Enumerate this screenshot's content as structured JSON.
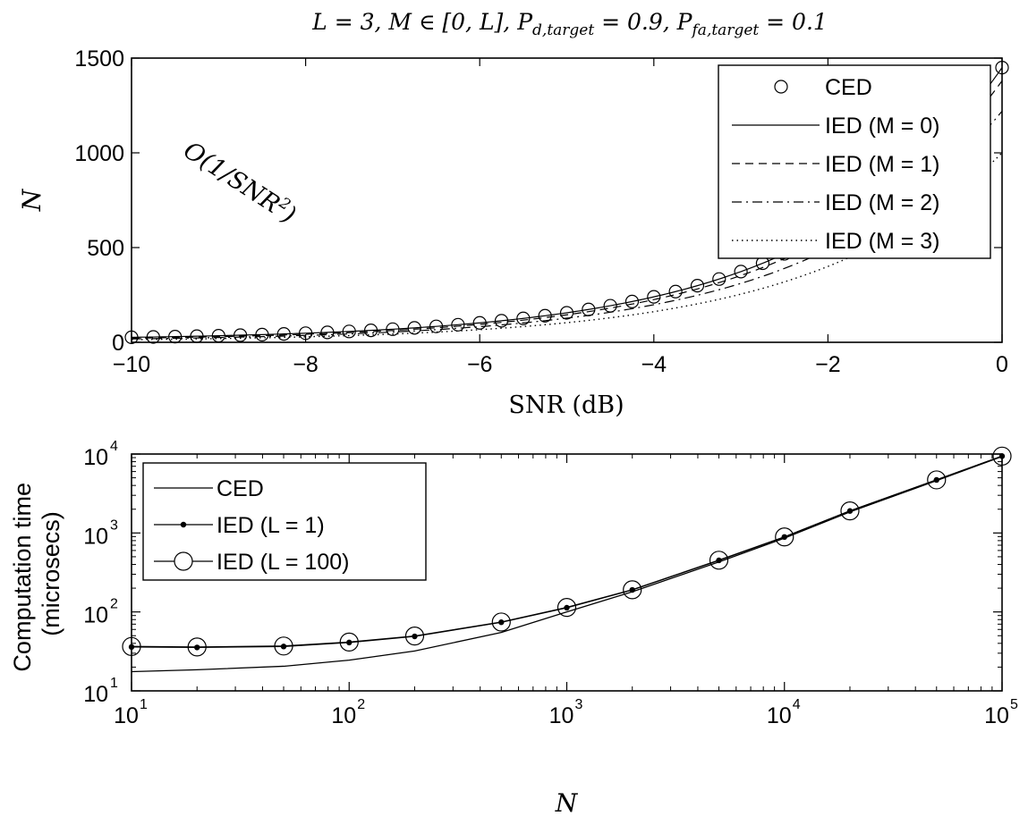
{
  "chart_data": [
    {
      "type": "line",
      "title": "L = 3, M ∈ [0, L], P_d,target = 0.9, P_fa,target = 0.1",
      "title_parts": {
        "a": "L = 3, M ∈ [0, L], P",
        "a_sub": "d,target",
        "b": " = 0.9, P",
        "b_sub": "fa,target",
        "c": " = 0.1"
      },
      "xlabel": "SNR (dB)",
      "ylabel": "N",
      "xlim": [
        -10,
        0
      ],
      "ylim": [
        0,
        1500
      ],
      "x_ticks": [
        -10,
        -8,
        -6,
        -4,
        -2,
        0
      ],
      "x_tick_labels": [
        "−10",
        "−8",
        "−6",
        "−4",
        "−2",
        "0"
      ],
      "y_ticks": [
        0,
        500,
        1000,
        1500
      ],
      "y_tick_labels": [
        "0",
        "500",
        "1000",
        "1500"
      ],
      "grid": false,
      "legend_position": "top-right",
      "annotation": {
        "text": "O(1/SNR²)",
        "base": "O(1/SNR",
        "sup": "2",
        "close": ")",
        "x": -8.6,
        "y": 850,
        "rotation_deg": 33
      },
      "ced_x": [
        -10,
        -9.75,
        -9.5,
        -9.25,
        -9,
        -8.75,
        -8.5,
        -8.25,
        -8,
        -7.75,
        -7.5,
        -7.25,
        -7,
        -6.75,
        -6.5,
        -6.25,
        -6,
        -5.75,
        -5.5,
        -5.25,
        -5,
        -4.75,
        -4.5,
        -4.25,
        -4,
        -3.75,
        -3.5,
        -3.25,
        -3,
        -2.75,
        -2.5,
        -2.25,
        -2,
        -1.75,
        -1.5,
        -1.25,
        -1,
        -0.75,
        -0.5,
        -0.25,
        0
      ],
      "series": [
        {
          "name": "CED",
          "style": "circles",
          "a": 1450,
          "offset": 12
        },
        {
          "name": "IED (M = 0)",
          "style": "solid",
          "a": 1450,
          "offset": 12
        },
        {
          "name": "IED (M = 1)",
          "style": "dashed",
          "a": 1380,
          "offset": 8
        },
        {
          "name": "IED (M = 2)",
          "style": "dashdot",
          "a": 1220,
          "offset": 6
        },
        {
          "name": "IED (M = 3)",
          "style": "dotted",
          "a": 1000,
          "offset": 4
        }
      ]
    },
    {
      "type": "line",
      "xlabel": "N",
      "ylabel": "Computation time (microsecs)",
      "ylabel_lines": [
        "Computation time",
        "(microsecs)"
      ],
      "x_scale": "log",
      "y_scale": "log",
      "xlim": [
        10,
        100000
      ],
      "ylim": [
        10,
        10000
      ],
      "x_ticks": [
        10,
        100,
        1000,
        10000,
        100000
      ],
      "y_ticks": [
        10,
        100,
        1000,
        10000
      ],
      "tick_base": "10",
      "x_tick_exponents": [
        "1",
        "2",
        "3",
        "4",
        "5"
      ],
      "y_tick_exponents": [
        "1",
        "2",
        "3",
        "4"
      ],
      "grid": false,
      "legend_position": "top-left",
      "x": [
        10,
        20,
        50,
        100,
        200,
        500,
        1000,
        2000,
        5000,
        10000,
        20000,
        50000,
        100000
      ],
      "series": [
        {
          "name": "CED",
          "style": "solid",
          "values": [
            17.5,
            18.5,
            20.5,
            24.5,
            32,
            55,
            100,
            180,
            430,
            860,
            1850,
            4600,
            9300
          ]
        },
        {
          "name": "IED (L = 1)",
          "style": "solid-dot",
          "values": [
            36,
            35.5,
            36.5,
            41,
            49,
            74,
            113,
            190,
            450,
            890,
            1900,
            4700,
            9400
          ]
        },
        {
          "name": "IED (L = 100)",
          "style": "solid-circle",
          "values": [
            36.5,
            36,
            37,
            41.5,
            49.5,
            74.5,
            114,
            191,
            452,
            892,
            1905,
            4705,
            9410
          ]
        }
      ]
    }
  ]
}
